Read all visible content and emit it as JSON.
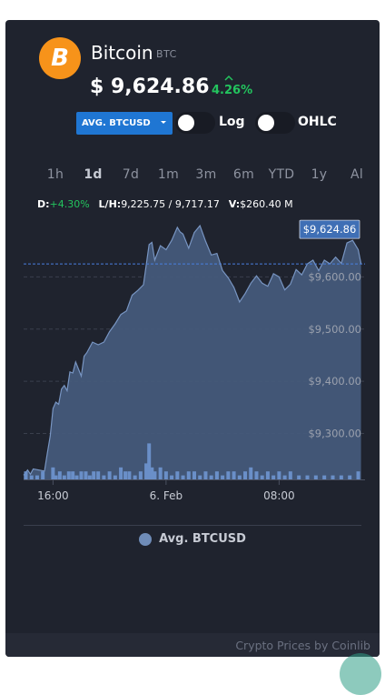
{
  "coin": {
    "name": "Bitcoin",
    "symbol": "BTC",
    "logo_letter": "B",
    "price": "$ 9,624.86",
    "change": "4.26%",
    "brand_color": "#f7931a"
  },
  "controls": {
    "market": "AVG. BTCUSD",
    "log_label": "Log",
    "ohlc_label": "OHLC"
  },
  "ranges": [
    {
      "label": "1h",
      "active": false
    },
    {
      "label": "1d",
      "active": true
    },
    {
      "label": "7d",
      "active": false
    },
    {
      "label": "1m",
      "active": false
    },
    {
      "label": "3m",
      "active": false
    },
    {
      "label": "6m",
      "active": false
    },
    {
      "label": "YTD",
      "active": false
    },
    {
      "label": "1y",
      "active": false
    },
    {
      "label": "Al",
      "active": false
    }
  ],
  "stats": {
    "d_label": "D:",
    "d_value": "+4.30%",
    "lh_label": "L/H:",
    "lh_value": "9,225.75 / 9,717.17",
    "v_label": "V:",
    "v_value": "$260.40 M"
  },
  "chart_data": {
    "type": "area",
    "x_ticks": [
      {
        "label": "16:00",
        "t": 0
      },
      {
        "label": "6. Feb",
        "t": 2
      },
      {
        "label": "08:00",
        "t": 4
      }
    ],
    "y_ticks": [
      {
        "label": "$9,300.00",
        "value": 9300
      },
      {
        "label": "$9,400.00",
        "value": 9400
      },
      {
        "label": "$9,500.00",
        "value": 9500
      },
      {
        "label": "$9,600.00",
        "value": 9600
      }
    ],
    "ylim": [
      9212,
      9700
    ],
    "xlim": [
      -0.52,
      5.52
    ],
    "current_price": 9624.86,
    "current_label": "$9,624.86",
    "series": [
      {
        "x": [
          -0.52,
          -0.45,
          -0.4,
          -0.35,
          -0.25,
          -0.15,
          -0.1,
          -0.05,
          0.0,
          0.05,
          0.1,
          0.15,
          0.2,
          0.25,
          0.3,
          0.35,
          0.4,
          0.5,
          0.55,
          0.6,
          0.7,
          0.8,
          0.9,
          1.0,
          1.1,
          1.2,
          1.3,
          1.4,
          1.5,
          1.6,
          1.7,
          1.75,
          1.8,
          1.9,
          2.0,
          2.1,
          2.2,
          2.25,
          2.3,
          2.4,
          2.5,
          2.6,
          2.7,
          2.8,
          2.9,
          3.0,
          3.1,
          3.2,
          3.3,
          3.4,
          3.5,
          3.6,
          3.7,
          3.8,
          3.9,
          4.0,
          4.1,
          4.2,
          4.3,
          4.4,
          4.5,
          4.6,
          4.7,
          4.8,
          4.9,
          5.0,
          5.1,
          5.2,
          5.3,
          5.4,
          5.45
        ],
        "y": [
          9220,
          9230,
          9222,
          9232,
          9230,
          9228,
          9262,
          9295,
          9348,
          9360,
          9356,
          9385,
          9392,
          9382,
          9418,
          9416,
          9437,
          9410,
          9448,
          9455,
          9475,
          9470,
          9475,
          9495,
          9510,
          9528,
          9535,
          9565,
          9574,
          9585,
          9662,
          9666,
          9632,
          9660,
          9652,
          9670,
          9695,
          9686,
          9682,
          9655,
          9685,
          9698,
          9668,
          9642,
          9645,
          9612,
          9598,
          9580,
          9552,
          9568,
          9588,
          9602,
          9588,
          9582,
          9606,
          9600,
          9575,
          9586,
          9614,
          9604,
          9625,
          9632,
          9612,
          9632,
          9625,
          9638,
          9626,
          9665,
          9670,
          9652,
          9625
        ]
      }
    ],
    "volume": [
      {
        "x": -0.48,
        "v": 2
      },
      {
        "x": -0.38,
        "v": 1
      },
      {
        "x": -0.28,
        "v": 1
      },
      {
        "x": -0.18,
        "v": 2
      },
      {
        "x": 0.0,
        "v": 3
      },
      {
        "x": 0.05,
        "v": 1
      },
      {
        "x": 0.12,
        "v": 2
      },
      {
        "x": 0.2,
        "v": 1
      },
      {
        "x": 0.28,
        "v": 2
      },
      {
        "x": 0.35,
        "v": 2
      },
      {
        "x": 0.42,
        "v": 1
      },
      {
        "x": 0.5,
        "v": 2
      },
      {
        "x": 0.58,
        "v": 2
      },
      {
        "x": 0.65,
        "v": 1
      },
      {
        "x": 0.72,
        "v": 2
      },
      {
        "x": 0.8,
        "v": 2
      },
      {
        "x": 0.9,
        "v": 1
      },
      {
        "x": 1.0,
        "v": 2
      },
      {
        "x": 1.1,
        "v": 1
      },
      {
        "x": 1.2,
        "v": 3
      },
      {
        "x": 1.28,
        "v": 2
      },
      {
        "x": 1.35,
        "v": 2
      },
      {
        "x": 1.45,
        "v": 1
      },
      {
        "x": 1.55,
        "v": 2
      },
      {
        "x": 1.65,
        "v": 4
      },
      {
        "x": 1.7,
        "v": 9
      },
      {
        "x": 1.75,
        "v": 3
      },
      {
        "x": 1.8,
        "v": 2
      },
      {
        "x": 1.9,
        "v": 3
      },
      {
        "x": 2.0,
        "v": 2
      },
      {
        "x": 2.1,
        "v": 1
      },
      {
        "x": 2.2,
        "v": 2
      },
      {
        "x": 2.3,
        "v": 1
      },
      {
        "x": 2.4,
        "v": 2
      },
      {
        "x": 2.5,
        "v": 2
      },
      {
        "x": 2.6,
        "v": 1
      },
      {
        "x": 2.7,
        "v": 2
      },
      {
        "x": 2.8,
        "v": 1
      },
      {
        "x": 2.9,
        "v": 2
      },
      {
        "x": 3.0,
        "v": 1
      },
      {
        "x": 3.1,
        "v": 2
      },
      {
        "x": 3.2,
        "v": 2
      },
      {
        "x": 3.3,
        "v": 1
      },
      {
        "x": 3.4,
        "v": 2
      },
      {
        "x": 3.5,
        "v": 3
      },
      {
        "x": 3.6,
        "v": 2
      },
      {
        "x": 3.7,
        "v": 1
      },
      {
        "x": 3.8,
        "v": 2
      },
      {
        "x": 3.9,
        "v": 1
      },
      {
        "x": 4.0,
        "v": 2
      },
      {
        "x": 4.1,
        "v": 1
      },
      {
        "x": 4.2,
        "v": 2
      },
      {
        "x": 4.35,
        "v": 1
      },
      {
        "x": 4.5,
        "v": 1
      },
      {
        "x": 4.65,
        "v": 1
      },
      {
        "x": 4.8,
        "v": 1
      },
      {
        "x": 4.95,
        "v": 1
      },
      {
        "x": 5.1,
        "v": 1
      },
      {
        "x": 5.25,
        "v": 1
      },
      {
        "x": 5.4,
        "v": 2
      }
    ],
    "legend": [
      "Avg. BTCUSD"
    ],
    "colors": {
      "area": "#455a7a",
      "line": "#7895c2",
      "volume": "#6a8fc8",
      "label_bg": "#3f6fb5"
    }
  },
  "footer": {
    "text": "Crypto Prices by Coinlib"
  }
}
